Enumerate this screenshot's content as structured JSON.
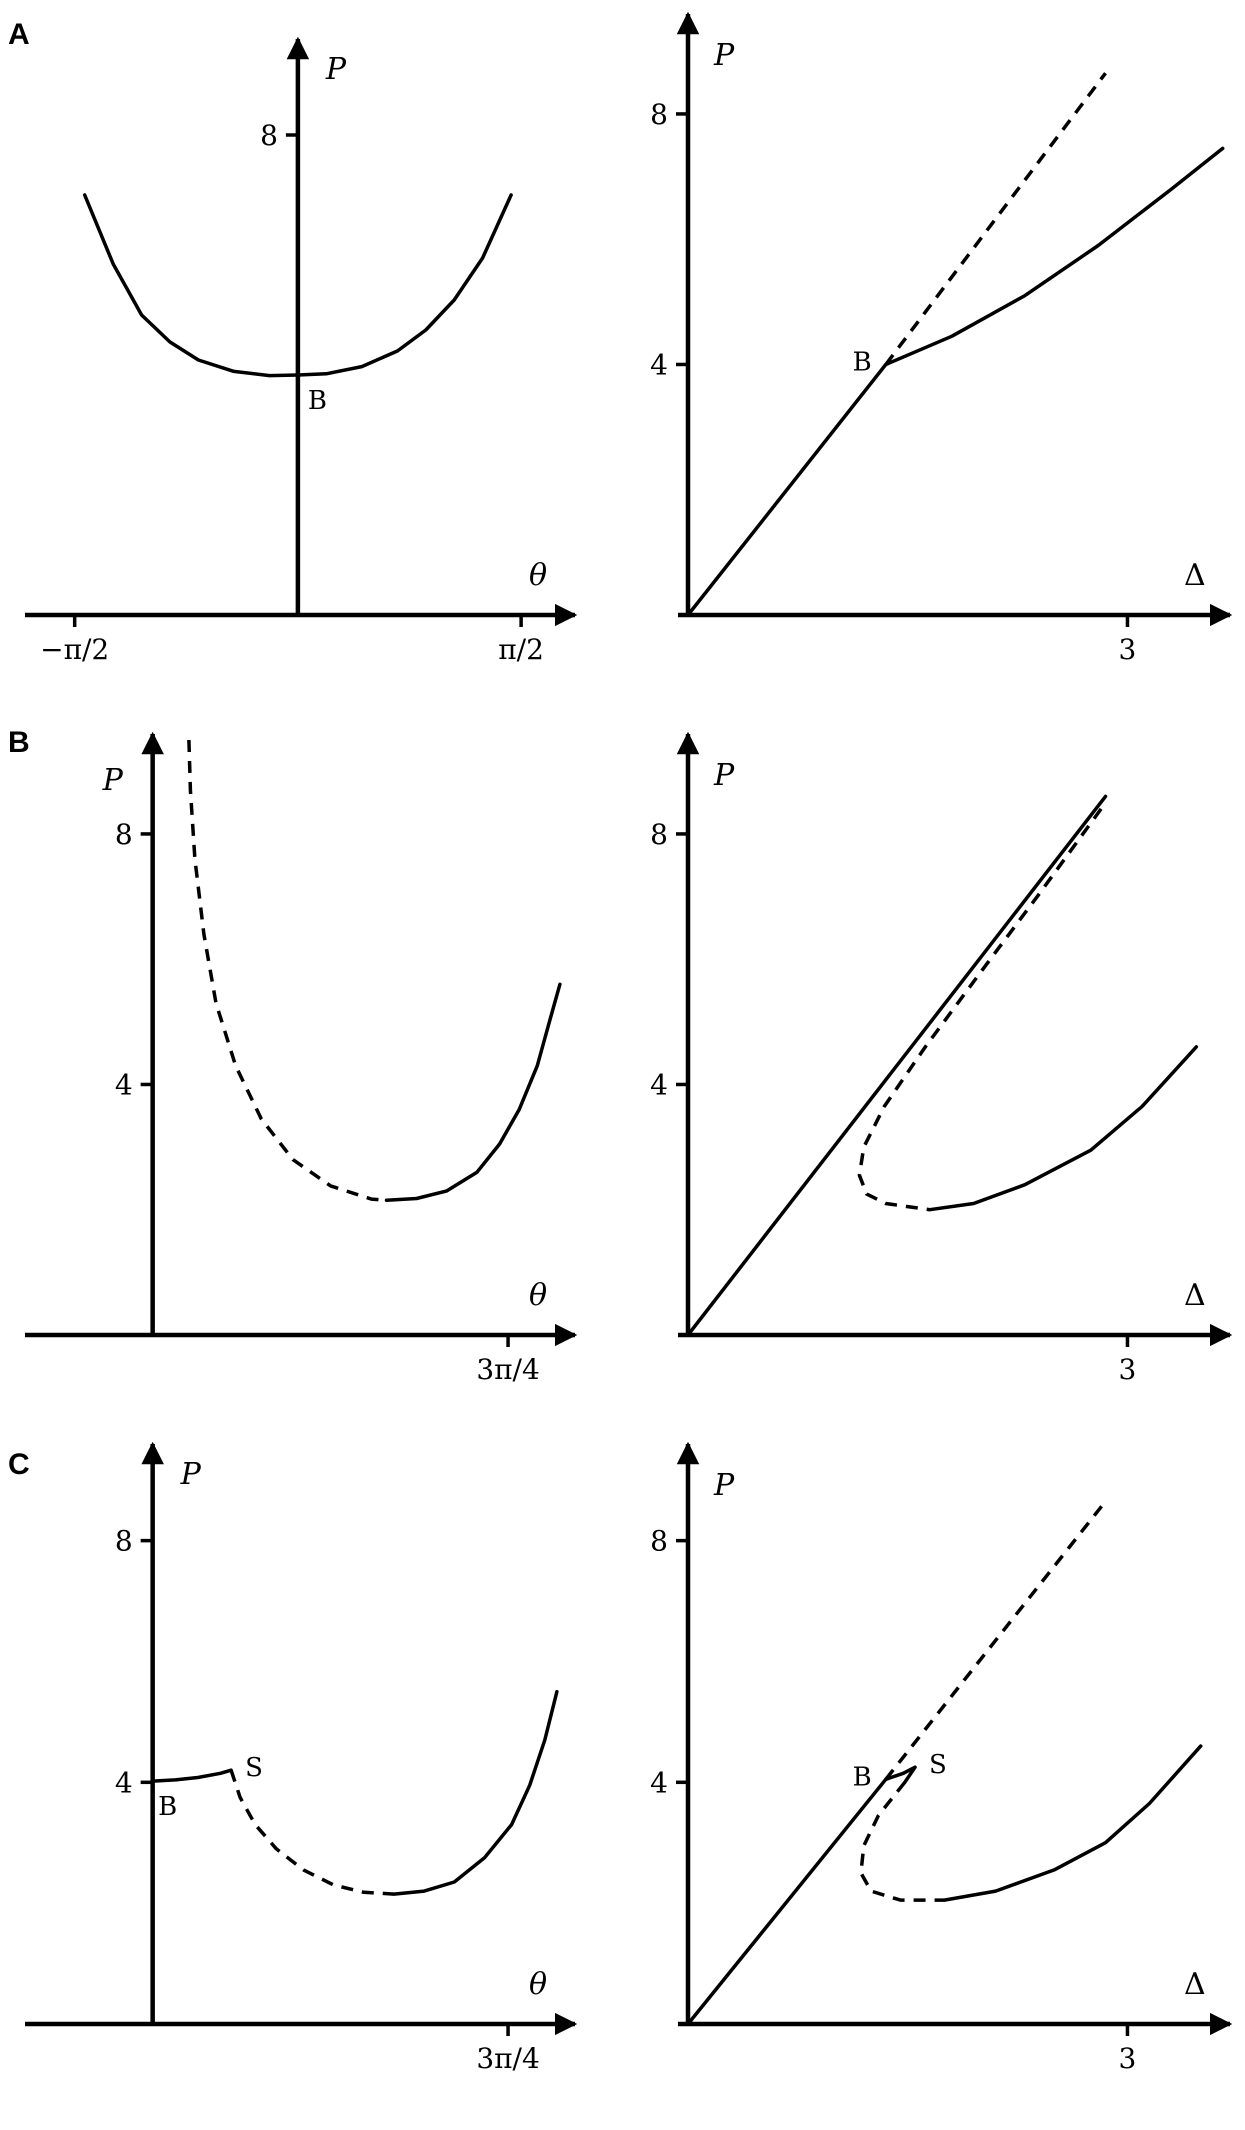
{
  "panels": [
    {
      "letter": "A"
    },
    {
      "letter": "B"
    },
    {
      "letter": "C"
    }
  ],
  "chart_data": [
    {
      "id": "A-left",
      "type": "line",
      "xlabel": "θ",
      "ylabel": "P",
      "xticks": [
        {
          "v": -1.5708,
          "label": "−π/2"
        },
        {
          "v": 1.5708,
          "label": "π/2"
        }
      ],
      "yticks": [
        {
          "v": 8,
          "label": "8"
        }
      ],
      "xlim": [
        -1.85,
        1.95
      ],
      "ylim": [
        0,
        9.5
      ],
      "yaxis_at": 0,
      "series": [
        {
          "style": "solid",
          "points": [
            [
              0,
              0
            ],
            [
              0,
              4
            ]
          ]
        },
        {
          "style": "solid",
          "points": [
            [
              -1.5,
              7.0
            ],
            [
              -1.3,
              5.85
            ],
            [
              -1.1,
              5.0
            ],
            [
              -0.9,
              4.55
            ],
            [
              -0.7,
              4.25
            ],
            [
              -0.45,
              4.06
            ],
            [
              -0.2,
              3.99
            ],
            [
              0,
              4.0
            ],
            [
              0.2,
              4.02
            ],
            [
              0.45,
              4.14
            ],
            [
              0.7,
              4.4
            ],
            [
              0.9,
              4.75
            ],
            [
              1.1,
              5.25
            ],
            [
              1.3,
              5.95
            ],
            [
              1.5,
              7.0
            ]
          ]
        }
      ],
      "points": [
        {
          "label": "B",
          "x": 0,
          "y": 4,
          "anchor": "below-right"
        }
      ]
    },
    {
      "id": "A-right",
      "type": "line",
      "xlabel": "Δ",
      "ylabel": "P",
      "xticks": [
        {
          "v": 3,
          "label": "3"
        }
      ],
      "yticks": [
        {
          "v": 4,
          "label": "4"
        },
        {
          "v": 8,
          "label": "8"
        }
      ],
      "xlim": [
        0,
        3.7
      ],
      "ylim": [
        0,
        9.5
      ],
      "yaxis_at": 0,
      "series": [
        {
          "style": "solid",
          "points": [
            [
              0,
              0
            ],
            [
              1.35,
              4.0
            ]
          ]
        },
        {
          "style": "dashed",
          "points": [
            [
              1.35,
              4.0
            ],
            [
              2.85,
              8.65
            ]
          ]
        },
        {
          "style": "solid",
          "points": [
            [
              1.35,
              4.0
            ],
            [
              1.8,
              4.45
            ],
            [
              2.3,
              5.1
            ],
            [
              2.8,
              5.9
            ],
            [
              3.3,
              6.8
            ],
            [
              3.65,
              7.45
            ]
          ]
        }
      ],
      "points": [
        {
          "label": "B",
          "x": 1.35,
          "y": 4,
          "anchor": "left"
        }
      ]
    },
    {
      "id": "B-left",
      "type": "line",
      "xlabel": "θ",
      "ylabel": "P",
      "xticks": [
        {
          "v": 2.3562,
          "label": "3π/4"
        }
      ],
      "yticks": [
        {
          "v": 4,
          "label": "4"
        },
        {
          "v": 8,
          "label": "8"
        }
      ],
      "xlim": [
        -0.78,
        2.8
      ],
      "ylim": [
        0,
        9.5
      ],
      "yaxis_at": 0,
      "series": [
        {
          "style": "dashed",
          "points": [
            [
              0.24,
              9.5
            ],
            [
              0.25,
              8.7
            ],
            [
              0.28,
              7.6
            ],
            [
              0.34,
              6.4
            ],
            [
              0.42,
              5.3
            ],
            [
              0.55,
              4.3
            ],
            [
              0.72,
              3.45
            ],
            [
              0.93,
              2.8
            ],
            [
              1.18,
              2.38
            ],
            [
              1.45,
              2.17
            ],
            [
              1.55,
              2.15
            ]
          ]
        },
        {
          "style": "solid",
          "points": [
            [
              1.55,
              2.15
            ],
            [
              1.75,
              2.18
            ],
            [
              1.95,
              2.3
            ],
            [
              2.15,
              2.6
            ],
            [
              2.3,
              3.05
            ],
            [
              2.43,
              3.6
            ],
            [
              2.55,
              4.3
            ],
            [
              2.63,
              5.0
            ],
            [
              2.7,
              5.6
            ]
          ]
        }
      ]
    },
    {
      "id": "B-right",
      "type": "line",
      "xlabel": "Δ",
      "ylabel": "P",
      "xticks": [
        {
          "v": 3,
          "label": "3"
        }
      ],
      "yticks": [
        {
          "v": 4,
          "label": "4"
        },
        {
          "v": 8,
          "label": "8"
        }
      ],
      "xlim": [
        0,
        3.7
      ],
      "ylim": [
        0,
        9.5
      ],
      "yaxis_at": 0,
      "series": [
        {
          "style": "solid",
          "points": [
            [
              0,
              0
            ],
            [
              2.85,
              8.6
            ]
          ]
        },
        {
          "style": "dashed",
          "points": [
            [
              2.82,
              8.4
            ],
            [
              2.4,
              7.05
            ],
            [
              2.0,
              5.8
            ],
            [
              1.62,
              4.6
            ],
            [
              1.34,
              3.65
            ],
            [
              1.2,
              3.0
            ],
            [
              1.17,
              2.55
            ],
            [
              1.22,
              2.25
            ],
            [
              1.35,
              2.1
            ],
            [
              1.65,
              2.0
            ]
          ]
        },
        {
          "style": "solid",
          "points": [
            [
              1.65,
              2.0
            ],
            [
              1.95,
              2.1
            ],
            [
              2.3,
              2.4
            ],
            [
              2.75,
              2.95
            ],
            [
              3.1,
              3.65
            ],
            [
              3.47,
              4.6
            ]
          ]
        }
      ]
    },
    {
      "id": "C-left",
      "type": "line",
      "xlabel": "θ",
      "ylabel": "P",
      "xticks": [
        {
          "v": 2.3562,
          "label": "3π/4"
        }
      ],
      "yticks": [
        {
          "v": 4,
          "label": "4"
        },
        {
          "v": 8,
          "label": "8"
        }
      ],
      "xlim": [
        -0.78,
        2.8
      ],
      "ylim": [
        0,
        9.5
      ],
      "yaxis_at": 0,
      "series": [
        {
          "style": "solid",
          "points": [
            [
              0,
              4.02
            ],
            [
              0.15,
              4.04
            ],
            [
              0.3,
              4.08
            ],
            [
              0.45,
              4.15
            ],
            [
              0.52,
              4.2
            ]
          ]
        },
        {
          "style": "dashed",
          "points": [
            [
              0.52,
              4.2
            ],
            [
              0.58,
              3.75
            ],
            [
              0.68,
              3.3
            ],
            [
              0.82,
              2.9
            ],
            [
              1.0,
              2.55
            ],
            [
              1.2,
              2.3
            ],
            [
              1.4,
              2.18
            ],
            [
              1.6,
              2.15
            ]
          ]
        },
        {
          "style": "solid",
          "points": [
            [
              1.6,
              2.15
            ],
            [
              1.8,
              2.2
            ],
            [
              2.0,
              2.35
            ],
            [
              2.2,
              2.75
            ],
            [
              2.38,
              3.3
            ],
            [
              2.5,
              3.95
            ],
            [
              2.6,
              4.7
            ],
            [
              2.68,
              5.5
            ]
          ]
        }
      ],
      "points": [
        {
          "label": "B",
          "x": 0.1,
          "y": 4.02,
          "anchor": "below"
        },
        {
          "label": "S",
          "x": 0.52,
          "y": 4.2,
          "anchor": "right"
        }
      ]
    },
    {
      "id": "C-right",
      "type": "line",
      "xlabel": "Δ",
      "ylabel": "P",
      "xticks": [
        {
          "v": 3,
          "label": "3"
        }
      ],
      "yticks": [
        {
          "v": 4,
          "label": "4"
        },
        {
          "v": 8,
          "label": "8"
        }
      ],
      "xlim": [
        0,
        3.7
      ],
      "ylim": [
        0,
        9.5
      ],
      "yaxis_at": 0,
      "series": [
        {
          "style": "solid",
          "points": [
            [
              0,
              0
            ],
            [
              1.35,
              4.05
            ]
          ]
        },
        {
          "style": "dashed",
          "points": [
            [
              1.35,
              4.05
            ],
            [
              2.85,
              8.65
            ]
          ]
        },
        {
          "style": "solid",
          "points": [
            [
              1.35,
              4.05
            ],
            [
              1.47,
              4.15
            ],
            [
              1.55,
              4.25
            ],
            [
              1.48,
              4.0
            ]
          ]
        },
        {
          "style": "dashed",
          "points": [
            [
              1.48,
              4.0
            ],
            [
              1.3,
              3.45
            ],
            [
              1.2,
              2.95
            ],
            [
              1.18,
              2.5
            ],
            [
              1.25,
              2.2
            ],
            [
              1.45,
              2.05
            ],
            [
              1.75,
              2.05
            ]
          ]
        },
        {
          "style": "solid",
          "points": [
            [
              1.75,
              2.05
            ],
            [
              2.1,
              2.2
            ],
            [
              2.5,
              2.55
            ],
            [
              2.85,
              3.0
            ],
            [
              3.15,
              3.65
            ],
            [
              3.5,
              4.6
            ]
          ]
        }
      ],
      "points": [
        {
          "label": "B",
          "x": 1.35,
          "y": 4.05,
          "anchor": "left"
        },
        {
          "label": "S",
          "x": 1.55,
          "y": 4.25,
          "anchor": "right"
        }
      ]
    }
  ]
}
